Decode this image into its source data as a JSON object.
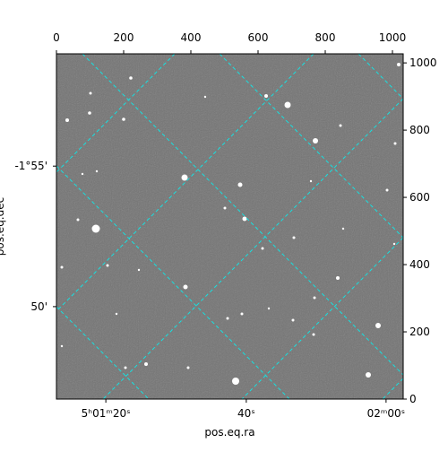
{
  "chart_data": {
    "type": "image",
    "xlim": [
      0,
      1032
    ],
    "ylim": [
      0,
      1027
    ],
    "xticks": [
      0,
      200,
      400,
      600,
      800,
      1000
    ],
    "yticks": [
      0,
      200,
      400,
      600,
      800,
      1000
    ],
    "xlabel": "pos.eq.ra",
    "ylabel": "pos.eq.dec",
    "ra_ticks": [
      {
        "value": 147,
        "label": "5ʰ01ᵐ20ˢ"
      },
      {
        "value": 565,
        "label": "40ˢ"
      },
      {
        "value": 981,
        "label": "02ᵐ00ˢ"
      }
    ],
    "dec_ticks": [
      {
        "value": 693,
        "label": "-1°55'"
      },
      {
        "value": 275,
        "label": "50'"
      }
    ],
    "grid_color": "#17e0e0"
  }
}
